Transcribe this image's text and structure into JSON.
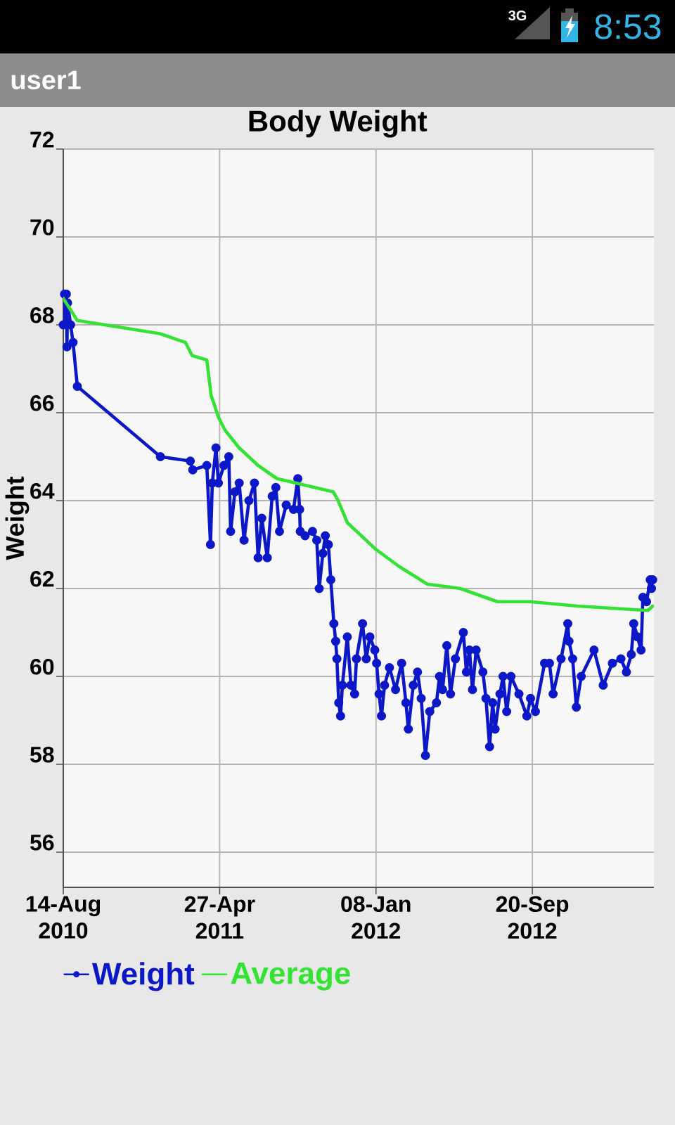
{
  "chart_data": {
    "type": "line",
    "title": "Body Weight",
    "ylabel": "Weight",
    "annotations": [
      "user1",
      "3G",
      "8:53"
    ],
    "xlim": [
      "2010-08-14",
      "2013-04-07"
    ],
    "xticks": [
      {
        "value": "2010-08-14",
        "label": "14-Aug 2010"
      },
      {
        "value": "2011-04-27",
        "label": "27-Apr 2011"
      },
      {
        "value": "2012-01-08",
        "label": "08-Jan 2012"
      },
      {
        "value": "2012-09-20",
        "label": "20-Sep 2012"
      }
    ],
    "ylim": [
      55.2,
      72
    ],
    "yticks": [
      56,
      58,
      60,
      62,
      64,
      66,
      68,
      70,
      72
    ],
    "grid": true,
    "legend": "bottom",
    "series": [
      {
        "name": "Weight",
        "color": "#0c18c8",
        "marker": "circle",
        "x": [
          "2010-08-14",
          "2010-08-16",
          "2010-08-19",
          "2010-08-20",
          "2010-08-21",
          "2010-08-26",
          "2010-08-30",
          "2010-09-06",
          "2011-01-20",
          "2011-03-10",
          "2011-03-14",
          "2011-04-06",
          "2011-04-12",
          "2011-04-15",
          "2011-04-21",
          "2011-04-25",
          "2011-05-04",
          "2011-05-12",
          "2011-05-15",
          "2011-05-22",
          "2011-05-29",
          "2011-06-06",
          "2011-06-14",
          "2011-06-23",
          "2011-06-29",
          "2011-07-05",
          "2011-07-14",
          "2011-07-22",
          "2011-07-28",
          "2011-08-03",
          "2011-08-14",
          "2011-08-26",
          "2011-09-02",
          "2011-09-05",
          "2011-09-06",
          "2011-09-14",
          "2011-09-26",
          "2011-10-03",
          "2011-10-07",
          "2011-10-13",
          "2011-10-17",
          "2011-10-22",
          "2011-10-26",
          "2011-10-31",
          "2011-11-03",
          "2011-11-05",
          "2011-11-08",
          "2011-11-11",
          "2011-11-14",
          "2011-11-22",
          "2011-11-28",
          "2011-12-04",
          "2011-12-07",
          "2011-12-17",
          "2011-12-23",
          "2011-12-29",
          "2012-01-06",
          "2012-01-09",
          "2012-01-13",
          "2012-01-17",
          "2012-01-22",
          "2012-01-30",
          "2012-02-09",
          "2012-02-19",
          "2012-02-26",
          "2012-03-01",
          "2012-03-09",
          "2012-03-16",
          "2012-03-22",
          "2012-03-29",
          "2012-04-05",
          "2012-04-16",
          "2012-04-21",
          "2012-04-26",
          "2012-05-03",
          "2012-05-09",
          "2012-05-17",
          "2012-05-30",
          "2012-06-04",
          "2012-06-09",
          "2012-06-14",
          "2012-06-20",
          "2012-07-01",
          "2012-07-06",
          "2012-07-12",
          "2012-07-17",
          "2012-07-21",
          "2012-07-29",
          "2012-08-03",
          "2012-08-09",
          "2012-08-16",
          "2012-08-29",
          "2012-09-11",
          "2012-09-17",
          "2012-09-25",
          "2012-10-10",
          "2012-10-18",
          "2012-10-24",
          "2012-11-06",
          "2012-11-17",
          "2012-11-19",
          "2012-11-25",
          "2012-12-01",
          "2012-12-09",
          "2012-12-30",
          "2013-01-14",
          "2013-01-29",
          "2013-02-12",
          "2013-02-21",
          "2013-03-01",
          "2013-03-05",
          "2013-03-11",
          "2013-03-17",
          "2013-03-20",
          "2013-03-26",
          "2013-04-01",
          "2013-04-03",
          "2013-04-05"
        ],
        "values": [
          68.0,
          68.7,
          68.7,
          67.5,
          68.5,
          68.0,
          67.6,
          66.6,
          65.0,
          64.9,
          64.7,
          64.8,
          63.0,
          64.4,
          65.2,
          64.4,
          64.8,
          65.0,
          63.3,
          64.2,
          64.4,
          63.1,
          64.0,
          64.4,
          62.7,
          63.6,
          62.7,
          64.1,
          64.3,
          63.3,
          63.9,
          63.8,
          64.5,
          63.8,
          63.3,
          63.2,
          63.3,
          63.1,
          62.0,
          62.8,
          63.2,
          63.0,
          62.2,
          61.2,
          60.8,
          60.4,
          59.4,
          59.1,
          59.8,
          60.9,
          59.8,
          59.6,
          60.4,
          61.2,
          60.4,
          60.9,
          60.6,
          60.3,
          59.6,
          59.1,
          59.8,
          60.2,
          59.7,
          60.3,
          59.4,
          58.8,
          59.8,
          60.1,
          59.5,
          58.2,
          59.2,
          59.4,
          60.0,
          59.7,
          60.7,
          59.6,
          60.4,
          61.0,
          60.1,
          60.6,
          59.7,
          60.6,
          60.1,
          59.5,
          58.4,
          59.4,
          58.8,
          59.6,
          60.0,
          59.2,
          60.0,
          59.6,
          59.1,
          59.5,
          59.2,
          60.3,
          60.3,
          59.6,
          60.4,
          61.2,
          60.8,
          60.4,
          59.3,
          60.0,
          60.6,
          59.8,
          60.3,
          60.4,
          60.1,
          60.5,
          61.2,
          60.9,
          60.6,
          61.8,
          61.7,
          62.2,
          62.0,
          62.2
        ]
      },
      {
        "name": "Average",
        "color": "#33e233",
        "marker": "none",
        "x": [
          "2010-08-14",
          "2010-09-06",
          "2011-01-19",
          "2011-03-02",
          "2011-03-13",
          "2011-04-06",
          "2011-04-13",
          "2011-04-25",
          "2011-05-06",
          "2011-05-29",
          "2011-06-29",
          "2011-07-30",
          "2011-08-30",
          "2011-10-30",
          "2011-11-07",
          "2011-11-22",
          "2012-01-07",
          "2012-02-15",
          "2012-04-01",
          "2012-05-25",
          "2012-07-25",
          "2012-09-17",
          "2012-12-03",
          "2013-03-28",
          "2013-04-05"
        ],
        "values": [
          68.6,
          68.1,
          67.8,
          67.6,
          67.3,
          67.2,
          66.4,
          65.9,
          65.6,
          65.2,
          64.8,
          64.5,
          64.4,
          64.2,
          64.0,
          63.5,
          62.9,
          62.5,
          62.1,
          62.0,
          61.7,
          61.7,
          61.6,
          61.5,
          61.6
        ]
      }
    ]
  }
}
